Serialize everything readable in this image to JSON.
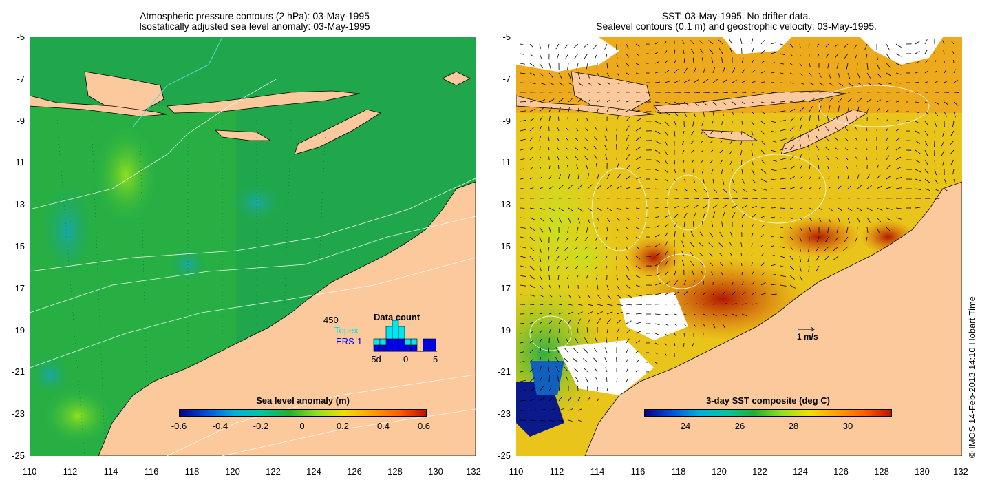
{
  "left_panel": {
    "title_line1": "Atmospheric pressure contours (2 hPa): 03-May-1995",
    "title_line2": "Isostatically adjusted sea level anomaly: 03-May-1995",
    "colorbar": {
      "title": "Sea level anomaly (m)",
      "ticks": [
        "-0.6",
        "-0.4",
        "-0.2",
        "0",
        "0.2",
        "0.4",
        "0.6"
      ]
    },
    "inset": {
      "count": "450",
      "title": "Data count",
      "series1": "Topex",
      "series2": "ERS-1",
      "x_left": "-5d",
      "x_mid": "0",
      "x_right": "5",
      "topex_bars": [
        1,
        1,
        2,
        3,
        2,
        1,
        1,
        0,
        0,
        0
      ],
      "ers_bars": [
        1,
        1,
        2,
        2,
        2,
        1,
        1,
        0,
        2,
        2
      ],
      "colors": {
        "topex": "#00e5ee",
        "ers": "#0000ee"
      }
    }
  },
  "right_panel": {
    "title_line1": "SST: 03-May-1995. No drifter data.",
    "title_line2": "Sealevel contours (0.1 m) and geostrophic velocity: 03-May-1995.",
    "colorbar": {
      "title": "3-day SST composite (deg C)",
      "ticks": [
        "24",
        "26",
        "28",
        "30"
      ]
    },
    "scale_label": "1 m/s"
  },
  "axes": {
    "y_ticks": [
      "-5",
      "-7",
      "-9",
      "-11",
      "-13",
      "-15",
      "-17",
      "-19",
      "-21",
      "-23",
      "-25"
    ],
    "x_ticks": [
      "110",
      "112",
      "114",
      "116",
      "118",
      "120",
      "122",
      "124",
      "126",
      "128",
      "130",
      "132"
    ]
  },
  "credit": "© IMOS 14-Feb-2013 14:10 Hobart Time",
  "colors": {
    "land": "#fbc99b",
    "ocean_left": "#1fa84a",
    "ocean_right": "#f2b21a"
  }
}
